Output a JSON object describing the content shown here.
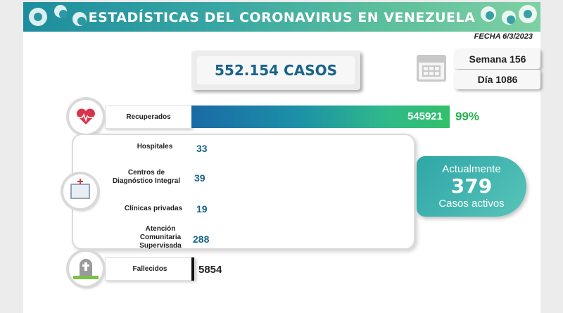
{
  "header": {
    "title": "ESTADÍSTICAS DEL CORONAVIRUS EN VENEZUELA",
    "fecha": "FECHA 6/3/2023"
  },
  "summary": {
    "total_casos": "552.154 CASOS",
    "semana": "Semana 156",
    "dia": "Día 1086"
  },
  "recuperados": {
    "label": "Recuperados",
    "value": "545921",
    "percent": "99%"
  },
  "centros": [
    {
      "label": "Hospitales",
      "value": "33"
    },
    {
      "label": "Centros de Diagnóstico Integral",
      "value": "39"
    },
    {
      "label": "Clínicas privadas",
      "value": "19"
    },
    {
      "label": "Atención Comunitaria Supervisada",
      "value": "288"
    }
  ],
  "activos": {
    "top": "Actualmente",
    "value": "379",
    "bottom": "Casos activos"
  },
  "fallecidos": {
    "label": "Fallecidos",
    "value": "5854"
  },
  "colors": {
    "banner": "#3aa8a3",
    "cases_text": "#17638b",
    "percent": "#22b04b",
    "active": "#2fa6a8"
  },
  "icons": [
    "virus-icon",
    "calendar-icon",
    "heart-icon",
    "hospital-icon",
    "tombstone-icon"
  ]
}
